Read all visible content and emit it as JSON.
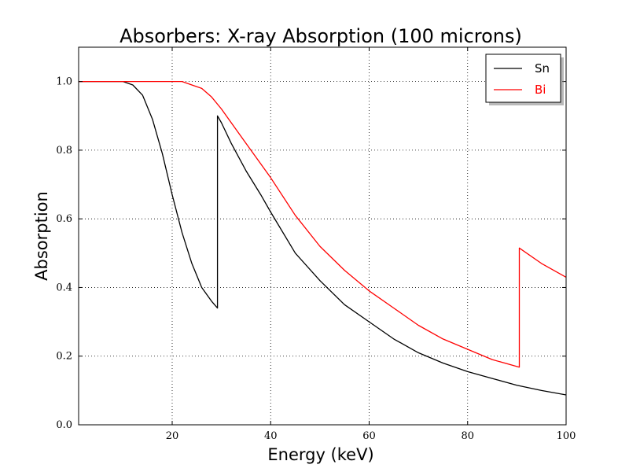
{
  "chart_data": {
    "type": "line",
    "title": "Absorbers: X-ray Absorption (100 microns)",
    "xlabel": "Energy (keV)",
    "ylabel": "Absorption",
    "xlim": [
      1,
      100
    ],
    "ylim": [
      0,
      1.1
    ],
    "x_ticks": [
      20,
      40,
      60,
      80,
      100
    ],
    "y_ticks": [
      0.0,
      0.2,
      0.4,
      0.6,
      0.8,
      1.0
    ],
    "x_tick_labels": [
      "20",
      "40",
      "60",
      "80",
      "100"
    ],
    "y_tick_labels": [
      "0.0",
      "0.2",
      "0.4",
      "0.6",
      "0.8",
      "1.0"
    ],
    "grid": true,
    "legend_position": "top-right",
    "series": [
      {
        "name": "Sn",
        "color": "#000000",
        "x": [
          1,
          5,
          10,
          12,
          14,
          16,
          18,
          20,
          22,
          24,
          26,
          28,
          29.2,
          29.2,
          30,
          32,
          35,
          38,
          40,
          45,
          50,
          55,
          60,
          65,
          70,
          75,
          80,
          85,
          90,
          95,
          100
        ],
        "y": [
          1.0,
          1.0,
          1.0,
          0.99,
          0.96,
          0.89,
          0.79,
          0.67,
          0.56,
          0.47,
          0.4,
          0.36,
          0.34,
          0.9,
          0.88,
          0.82,
          0.74,
          0.67,
          0.62,
          0.5,
          0.42,
          0.35,
          0.3,
          0.25,
          0.21,
          0.18,
          0.155,
          0.135,
          0.115,
          0.1,
          0.087
        ]
      },
      {
        "name": "Bi",
        "color": "#ff0000",
        "x": [
          1,
          10,
          20,
          22,
          24,
          26,
          28,
          30,
          32,
          35,
          38,
          40,
          45,
          50,
          55,
          60,
          65,
          70,
          75,
          80,
          85,
          90.5,
          90.5,
          95,
          100
        ],
        "y": [
          1.0,
          1.0,
          1.0,
          1.0,
          0.99,
          0.98,
          0.955,
          0.92,
          0.88,
          0.82,
          0.76,
          0.72,
          0.61,
          0.52,
          0.45,
          0.39,
          0.34,
          0.29,
          0.25,
          0.22,
          0.19,
          0.168,
          0.515,
          0.47,
          0.43
        ]
      }
    ]
  }
}
